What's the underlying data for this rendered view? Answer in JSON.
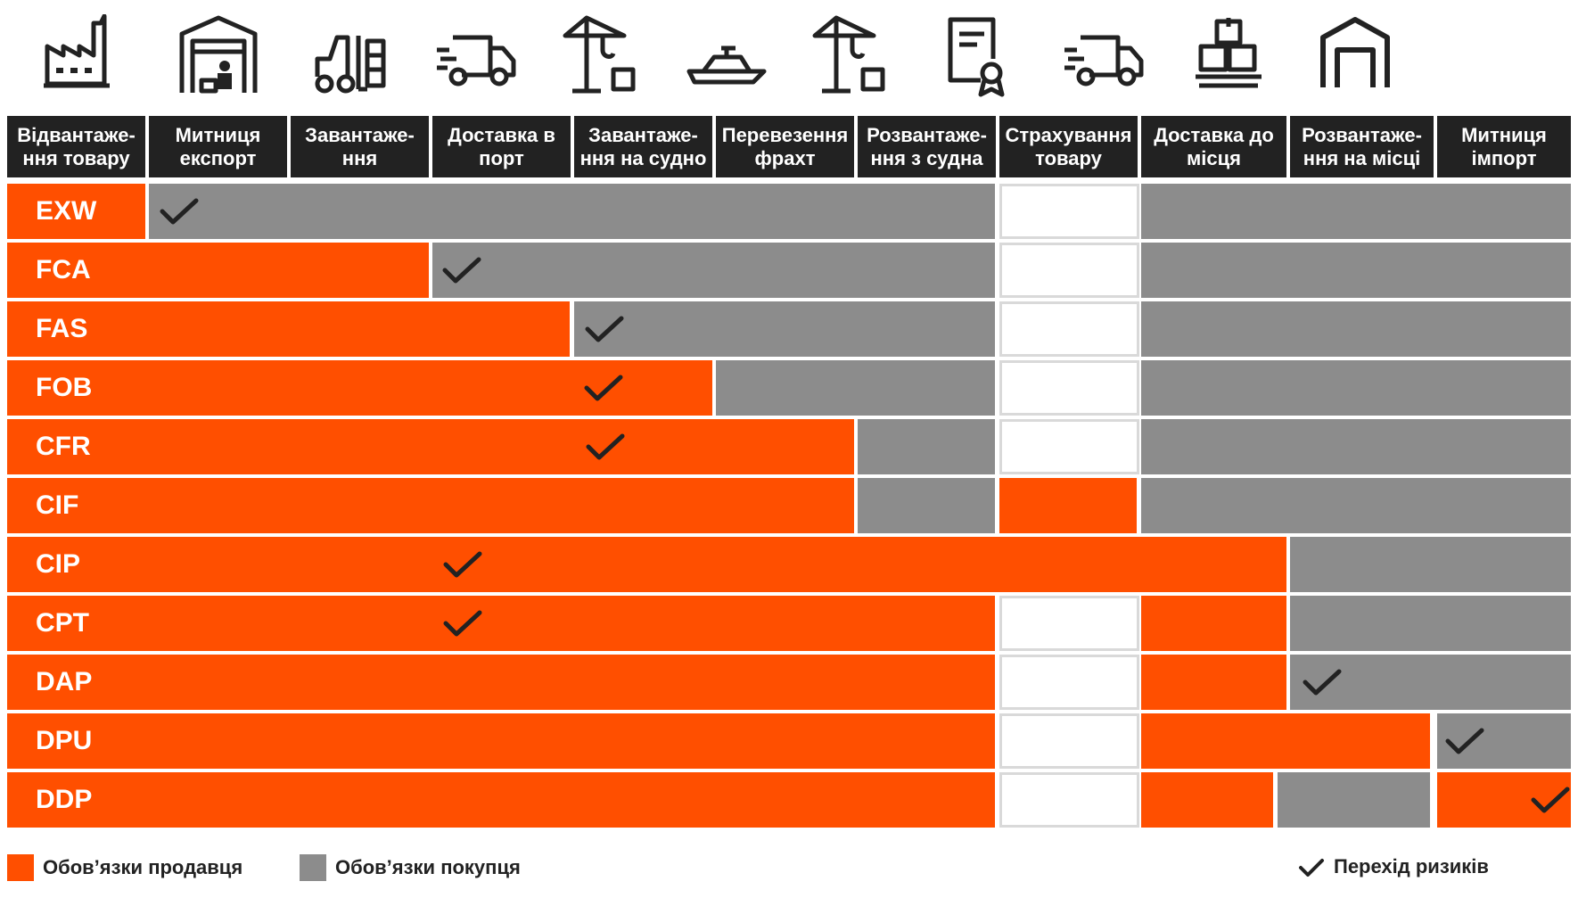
{
  "colors": {
    "seller": "#ff4f00",
    "buyer": "#8c8c8c",
    "header": "#222222",
    "insurance_empty": "#ffffff"
  },
  "columns": [
    {
      "label": "Відвантаже-\nння товару",
      "icon": "factory-icon"
    },
    {
      "label": "Митниця\nекспорт",
      "icon": "customs-warehouse-icon"
    },
    {
      "label": "Завантаже-\nння",
      "icon": "forklift-icon"
    },
    {
      "label": "Доставка в\nпорт",
      "icon": "delivery-truck-icon"
    },
    {
      "label": "Завантаже-\nння на судно",
      "icon": "crane-icon"
    },
    {
      "label": "Перевезення\nфрахт",
      "icon": "ship-icon"
    },
    {
      "label": "Розвантаже-\nння з судна",
      "icon": "crane-icon"
    },
    {
      "label": "Страхування\nтовару",
      "icon": "certificate-icon"
    },
    {
      "label": "Доставка до\nмісця",
      "icon": "delivery-truck-icon"
    },
    {
      "label": "Розвантаже-\nння на місці",
      "icon": "boxes-pallet-icon"
    },
    {
      "label": "Митниця\nімпорт",
      "icon": "warehouse-icon"
    }
  ],
  "rows": [
    {
      "code": "EXW"
    },
    {
      "code": "FCA"
    },
    {
      "code": "FAS"
    },
    {
      "code": "FOB"
    },
    {
      "code": "CFR"
    },
    {
      "code": "CIF"
    },
    {
      "code": "CIP"
    },
    {
      "code": "CPT"
    },
    {
      "code": "DAP"
    },
    {
      "code": "DPU"
    },
    {
      "code": "DDP"
    }
  ],
  "legend": {
    "seller": "Обов’язки продавця",
    "buyer": "Обов’язки покупця",
    "risk": "Перехід ризиків"
  }
}
